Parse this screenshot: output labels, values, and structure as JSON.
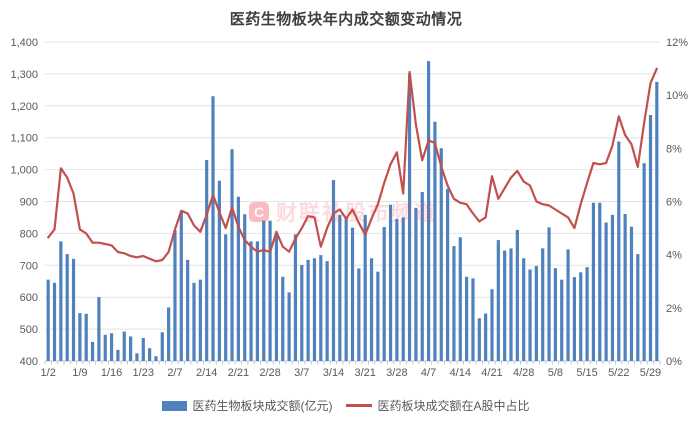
{
  "title": "医药生物板块年内成交额变动情况",
  "watermark": {
    "logo_letter": "C",
    "text": "财联社股市频道"
  },
  "legend": [
    {
      "type": "bar",
      "color": "#4f81bd",
      "label": "医药生物板块成交额(亿元)"
    },
    {
      "type": "line",
      "color": "#c0504d",
      "label": "医药板块成交额在A股中占比"
    }
  ],
  "colors": {
    "bar": "#4f81bd",
    "line": "#c0504d",
    "grid": "#e4e4e4",
    "axis_line": "#c9c9c9",
    "tick": "#a9bdd6",
    "axis_text": "#595959",
    "title_text": "#3f3f3f"
  },
  "chart_data": {
    "type": "bar+line",
    "title": "医药生物板块年内成交额变动情况",
    "grid": true,
    "legend_position": "bottom",
    "categories": [
      "1/2",
      "1/3",
      "1/6",
      "1/7",
      "1/8",
      "1/9",
      "1/10",
      "1/13",
      "1/14",
      "1/15",
      "1/16",
      "1/17",
      "1/20",
      "1/21",
      "1/22",
      "1/23",
      "1/24",
      "1/27",
      "2/5",
      "2/6",
      "2/7",
      "2/10",
      "2/11",
      "2/12",
      "2/13",
      "2/14",
      "2/17",
      "2/18",
      "2/19",
      "2/20",
      "2/21",
      "2/24",
      "2/25",
      "2/26",
      "2/27",
      "2/28",
      "3/3",
      "3/4",
      "3/5",
      "3/6",
      "3/7",
      "3/10",
      "3/11",
      "3/12",
      "3/13",
      "3/14",
      "3/17",
      "3/18",
      "3/19",
      "3/20",
      "3/21",
      "3/24",
      "3/25",
      "3/26",
      "3/27",
      "3/28",
      "3/31",
      "4/1",
      "4/2",
      "4/3",
      "4/7",
      "4/8",
      "4/9",
      "4/10",
      "4/11",
      "4/14",
      "4/15",
      "4/16",
      "4/17",
      "4/18",
      "4/21",
      "4/22",
      "4/23",
      "4/24",
      "4/25",
      "4/28",
      "4/29",
      "4/30",
      "5/6",
      "5/7",
      "5/8",
      "5/9",
      "5/12",
      "5/13",
      "5/14",
      "5/15",
      "5/16",
      "5/19",
      "5/20",
      "5/21",
      "5/22",
      "5/23",
      "5/26",
      "5/27",
      "5/28",
      "5/29",
      "5/30"
    ],
    "x_tick_labels": [
      "1/2",
      "1/9",
      "1/16",
      "1/23",
      "2/7",
      "2/14",
      "2/21",
      "2/28",
      "3/7",
      "3/14",
      "3/21",
      "3/28",
      "4/7",
      "4/14",
      "4/21",
      "4/28",
      "5/8",
      "5/15",
      "5/22",
      "5/29"
    ],
    "x_label_every": 5,
    "series": [
      {
        "name": "医药生物板块成交额(亿元)",
        "type": "bar",
        "axis": "left",
        "values": [
          655,
          645,
          775,
          735,
          720,
          550,
          548,
          460,
          600,
          482,
          487,
          435,
          492,
          477,
          424,
          472,
          440,
          415,
          490,
          568,
          810,
          870,
          717,
          645,
          655,
          1030,
          1230,
          965,
          797,
          1064,
          915,
          860,
          775,
          775,
          840,
          840,
          800,
          664,
          615,
          797,
          701,
          717,
          722,
          732,
          713,
          967,
          858,
          850,
          818,
          690,
          858,
          722,
          680,
          820,
          890,
          845,
          850,
          1300,
          880,
          930,
          1340,
          1150,
          1067,
          940,
          760,
          788,
          664,
          659,
          534,
          549,
          625,
          779,
          746,
          753,
          811,
          722,
          687,
          698,
          753,
          819,
          691,
          655,
          750,
          663,
          678,
          694,
          896,
          896,
          834,
          858,
          1088,
          861,
          821,
          735,
          1020,
          1171,
          1275
        ]
      },
      {
        "name": "医药板块成交额在A股中占比",
        "type": "line",
        "axis": "right",
        "unit": "%",
        "values": [
          4.65,
          4.95,
          7.25,
          6.9,
          6.3,
          4.95,
          4.8,
          4.45,
          4.45,
          4.4,
          4.35,
          4.1,
          4.05,
          3.95,
          3.9,
          3.95,
          3.85,
          3.75,
          3.8,
          4.1,
          4.95,
          5.65,
          5.55,
          5.1,
          4.86,
          5.5,
          6.25,
          5.6,
          5.0,
          5.78,
          5.05,
          4.55,
          4.3,
          4.11,
          4.18,
          4.1,
          4.86,
          4.3,
          4.11,
          4.6,
          5.0,
          5.45,
          5.4,
          4.3,
          5.0,
          5.55,
          5.7,
          5.35,
          5.7,
          5.2,
          4.75,
          5.35,
          5.9,
          6.7,
          7.4,
          7.85,
          6.3,
          10.87,
          8.9,
          7.55,
          8.3,
          8.2,
          7.3,
          6.6,
          6.1,
          5.95,
          5.9,
          5.55,
          5.25,
          5.4,
          6.95,
          6.1,
          6.5,
          6.9,
          7.15,
          6.75,
          6.6,
          6.0,
          5.9,
          5.85,
          5.7,
          5.55,
          5.4,
          5.0,
          5.9,
          6.7,
          7.45,
          7.4,
          7.45,
          8.1,
          9.2,
          8.5,
          8.15,
          7.3,
          8.95,
          10.45,
          11.0
        ]
      }
    ],
    "left_axis": {
      "min": 400,
      "max": 1400,
      "step": 100,
      "tick_labels": [
        "400",
        "500",
        "600",
        "700",
        "800",
        "900",
        "1,000",
        "1,100",
        "1,200",
        "1,300",
        "1,400"
      ]
    },
    "right_axis": {
      "min": 0,
      "max": 12,
      "step": 2,
      "tick_labels": [
        "0%",
        "2%",
        "4%",
        "6%",
        "8%",
        "10%",
        "12%"
      ]
    }
  }
}
